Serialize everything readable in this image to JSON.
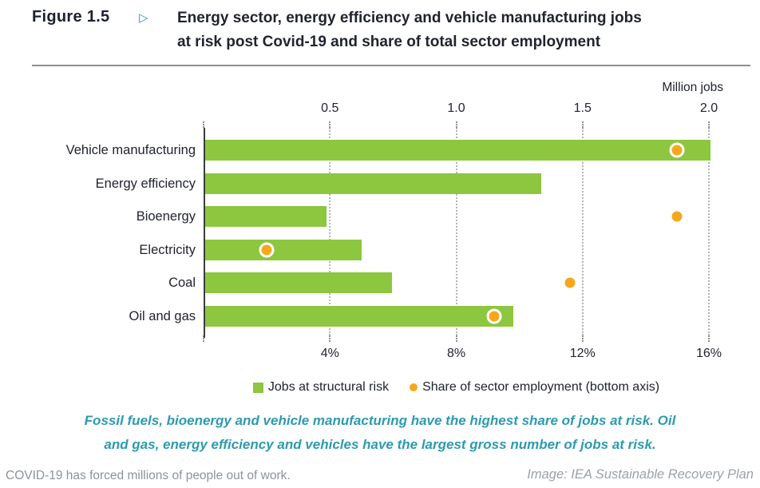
{
  "header": {
    "figure_label": "Figure 1.5",
    "arrow_icon": "triangle-right-icon",
    "arrow_glyph": "▷",
    "title_line1": "Energy sector, energy efficiency and vehicle manufacturing jobs",
    "title_line2": "at risk post Covid-19 and share of total sector employment"
  },
  "chart_data": {
    "type": "bar",
    "orientation": "horizontal",
    "title": "Energy sector, energy efficiency and vehicle manufacturing jobs at risk post Covid-19 and share of total sector employment",
    "categories": [
      "Vehicle manufacturing",
      "Energy efficiency",
      "Bioenergy",
      "Electricity",
      "Coal",
      "Oil and gas"
    ],
    "series": [
      {
        "name": "Jobs at structural risk",
        "axis": "top",
        "unit": "million jobs",
        "values": [
          2.0,
          1.33,
          0.48,
          0.62,
          0.74,
          1.22
        ]
      },
      {
        "name": "Share of sector employment (bottom axis)",
        "axis": "bottom",
        "unit": "percent",
        "values": [
          15.0,
          null,
          15.0,
          2.0,
          11.6,
          9.2
        ]
      }
    ],
    "top_axis": {
      "label": "Million jobs",
      "min": 0,
      "max": 2.0,
      "ticks": [
        0.5,
        1.0,
        1.5,
        2.0
      ],
      "tick_labels": [
        "0.5",
        "1.0",
        "1.5",
        "2.0"
      ]
    },
    "bottom_axis": {
      "min": 0,
      "max": 16,
      "ticks": [
        4,
        8,
        12,
        16
      ],
      "tick_labels": [
        "4%",
        "8%",
        "12%",
        "16%"
      ]
    },
    "grid": "vertical-dotted",
    "legend_position": "bottom"
  },
  "legend": {
    "items": [
      {
        "label": "Jobs at structural risk",
        "marker": "square",
        "color": "#8dc63f"
      },
      {
        "label": "Share of sector employment (bottom axis)",
        "marker": "circle",
        "color": "#f5a81c"
      }
    ]
  },
  "caption": {
    "line1": "Fossil fuels, bioenergy and vehicle manufacturing have the highest share of jobs at risk. Oil",
    "line2": "and gas, energy efficiency and vehicles have the largest gross number of jobs at risk."
  },
  "footer": {
    "left": "COVID-19 has forced millions of people out of work.",
    "right": "Image: IEA Sustainable Recovery Plan"
  },
  "colors": {
    "bar_green": "#8dc63f",
    "dot_yellow": "#f5a81c",
    "accent_teal": "#2d9ab0",
    "text_dark": "#21242e",
    "grid_gray": "#b5b5b5",
    "footer_gray": "#9aa1a9"
  }
}
